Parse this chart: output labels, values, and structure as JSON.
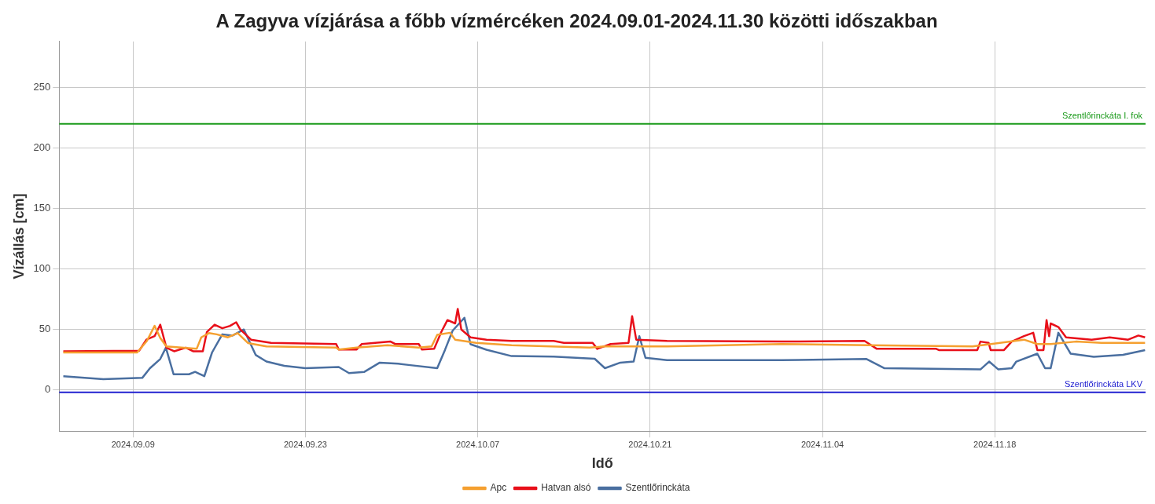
{
  "chart_data": {
    "type": "line",
    "title": "A Zagyva vízjárása a főbb vízmércéken 2024.09.01-2024.11.30 közötti időszakban",
    "xlabel": "Idő",
    "ylabel": "Vízállás [cm]",
    "xlim": [
      "2024-09-03",
      "2024-11-30T06:00"
    ],
    "xticks": [
      {
        "value": "2024-09-09",
        "label": "2024.09.09"
      },
      {
        "value": "2024-09-23",
        "label": "2024.09.23"
      },
      {
        "value": "2024-10-07",
        "label": "2024.10.07"
      },
      {
        "value": "2024-10-21",
        "label": "2024.10.21"
      },
      {
        "value": "2024-11-04",
        "label": "2024.11.04"
      },
      {
        "value": "2024-11-18",
        "label": "2024.11.18"
      }
    ],
    "ylim": [
      -34,
      288
    ],
    "yticks": [
      0,
      50,
      100,
      150,
      200,
      250
    ],
    "grid": true,
    "legend": "bottom",
    "marker": "none",
    "line_style": "solid",
    "series": [
      {
        "name": "Apc",
        "color": "#f5a030",
        "x": [
          "2024-09-03T08:00",
          "2024-09-09T08:00",
          "2024-09-10T03:00",
          "2024-09-10T18:00",
          "2024-09-11T05:00",
          "2024-09-11T17:00",
          "2024-09-14T04:00",
          "2024-09-14T13:00",
          "2024-09-15T04:00",
          "2024-09-15T19:00",
          "2024-09-16T17:00",
          "2024-09-17T12:00",
          "2024-09-18T08:00",
          "2024-09-19T20:00",
          "2024-09-25T12:00",
          "2024-09-25T17:00",
          "2024-09-27T04:00",
          "2024-09-29T16:00",
          "2024-10-02T05:00",
          "2024-10-03T06:00",
          "2024-10-03T17:00",
          "2024-10-04T18:00",
          "2024-10-05T04:00",
          "2024-10-06T21:00",
          "2024-10-09T18:00",
          "2024-10-16T02:00",
          "2024-10-17T08:00",
          "2024-10-22T09:00",
          "2024-10-31T16:00",
          "2024-11-07T18:00",
          "2024-11-16T05:00",
          "2024-11-20T09:00",
          "2024-11-21T11:00",
          "2024-11-22T13:00",
          "2024-11-24T14:00",
          "2024-11-26T16:00",
          "2024-11-30T05:00"
        ],
        "values": [
          31,
          31,
          40.6,
          53,
          43,
          36,
          34,
          43.5,
          47,
          46,
          43.5,
          47,
          38.8,
          36,
          35,
          33.5,
          35,
          37,
          35,
          36,
          45.6,
          47.3,
          41.6,
          39,
          37,
          35,
          36,
          36,
          38,
          37,
          36,
          41.6,
          38,
          38,
          40,
          39,
          39
        ]
      },
      {
        "name": "Hatvan alsó",
        "color": "#e8101a",
        "x": [
          "2024-09-03T08:00",
          "2024-09-09T12:00",
          "2024-09-10T02:00",
          "2024-09-10T18:00",
          "2024-09-11T05:00",
          "2024-09-11T17:00",
          "2024-09-12T08:00",
          "2024-09-13T07:00",
          "2024-09-13T21:00",
          "2024-09-14T16:00",
          "2024-09-15T00:00",
          "2024-09-15T15:00",
          "2024-09-16T06:00",
          "2024-09-16T21:00",
          "2024-09-17T09:00",
          "2024-09-17T17:00",
          "2024-09-18T14:00",
          "2024-09-20T05:00",
          "2024-09-25T12:00",
          "2024-09-25T17:00",
          "2024-09-27T04:00",
          "2024-09-27T14:00",
          "2024-09-29T22:00",
          "2024-09-30T07:00",
          "2024-10-02T05:00",
          "2024-10-02T11:00",
          "2024-10-03T11:00",
          "2024-10-04T01:00",
          "2024-10-04T13:00",
          "2024-10-05T04:00",
          "2024-10-05T09:00",
          "2024-10-05T16:00",
          "2024-10-06T10:00",
          "2024-10-07T17:00",
          "2024-10-09T18:00",
          "2024-10-13T04:00",
          "2024-10-14T00:00",
          "2024-10-16T08:00",
          "2024-10-16T17:00",
          "2024-10-17T19:00",
          "2024-10-19T06:00",
          "2024-10-19T13:00",
          "2024-10-19T21:00",
          "2024-10-22T09:00",
          "2024-10-31T16:00",
          "2024-11-07T10:00",
          "2024-11-08T10:00",
          "2024-11-13T06:00",
          "2024-11-13T11:00",
          "2024-11-16T14:00",
          "2024-11-16T20:00",
          "2024-11-17T12:00",
          "2024-11-17T16:00",
          "2024-11-18T18:00",
          "2024-11-19T09:00",
          "2024-11-20T09:00",
          "2024-11-21T03:00",
          "2024-11-21T11:00",
          "2024-11-21T23:00",
          "2024-11-22T05:00",
          "2024-11-22T10:00",
          "2024-11-22T13:00",
          "2024-11-23T04:00",
          "2024-11-23T19:00",
          "2024-11-25T21:00",
          "2024-11-27T08:00",
          "2024-11-28T20:00",
          "2024-11-29T16:00",
          "2024-11-30T05:00"
        ],
        "values": [
          32,
          32.5,
          41.6,
          44.5,
          54,
          35,
          32,
          35,
          32,
          32,
          48,
          54,
          51,
          53,
          56,
          50,
          41.6,
          39,
          38,
          33.5,
          33.5,
          38,
          40,
          38,
          38,
          33.5,
          34,
          48,
          57.8,
          55,
          67,
          50,
          43.5,
          41.6,
          40.6,
          40.6,
          39,
          39,
          34,
          38,
          39,
          61,
          41.6,
          40.6,
          40,
          40.6,
          34,
          34,
          33,
          33,
          40,
          39,
          33,
          33,
          40,
          44.5,
          47.3,
          33,
          33,
          57.8,
          44.5,
          55,
          52,
          43.5,
          41.6,
          43.5,
          41.6,
          45,
          43.5
        ]
      },
      {
        "name": "Szentlőrinckáta",
        "color": "#4a6fa0",
        "x": [
          "2024-09-03T08:00",
          "2024-09-06T14:00",
          "2024-09-09T18:00",
          "2024-09-10T09:00",
          "2024-09-11T05:00",
          "2024-09-11T16:00",
          "2024-09-12T07:00",
          "2024-09-13T13:00",
          "2024-09-14T01:00",
          "2024-09-14T19:00",
          "2024-09-15T10:00",
          "2024-09-16T06:00",
          "2024-09-17T02:00",
          "2024-09-18T00:00",
          "2024-09-18T23:00",
          "2024-09-19T20:00",
          "2024-09-21T07:00",
          "2024-09-23T00:00",
          "2024-09-25T17:00",
          "2024-09-26T13:00",
          "2024-09-27T19:00",
          "2024-09-29T01:00",
          "2024-09-30T13:00",
          "2024-10-01T09:00",
          "2024-10-03T17:00",
          "2024-10-04T08:00",
          "2024-10-04T23:00",
          "2024-10-05T22:00",
          "2024-10-06T10:00",
          "2024-10-07T17:00",
          "2024-10-09T18:00",
          "2024-10-13T04:00",
          "2024-10-16T12:00",
          "2024-10-17T08:00",
          "2024-10-18T14:00",
          "2024-10-19T16:00",
          "2024-10-20T03:00",
          "2024-10-20T15:00",
          "2024-10-22T09:00",
          "2024-10-31T16:00",
          "2024-11-07T14:00",
          "2024-11-09T01:00",
          "2024-11-16T20:00",
          "2024-11-17T13:00",
          "2024-11-18T07:00",
          "2024-11-19T09:00",
          "2024-11-19T18:00",
          "2024-11-21T11:00",
          "2024-11-22T02:00",
          "2024-11-22T13:00",
          "2024-11-23T04:00",
          "2024-11-24T04:00",
          "2024-11-26T01:00",
          "2024-11-28T10:00",
          "2024-11-30T05:00"
        ],
        "values": [
          11.4,
          9,
          10,
          18,
          25.6,
          35,
          13,
          13,
          15,
          11.4,
          31,
          46,
          45,
          50,
          29,
          23.5,
          20,
          18,
          19,
          14,
          15,
          22.6,
          21.7,
          20.7,
          18,
          33,
          49,
          59.7,
          37.8,
          33.3,
          28,
          27.6,
          25.8,
          18,
          22.6,
          23.5,
          44.5,
          26.6,
          24.7,
          24.7,
          25.6,
          18,
          17,
          23.5,
          17,
          18,
          23.5,
          30,
          18,
          18,
          47.3,
          30,
          27.4,
          29,
          33
        ]
      }
    ],
    "ref_lines": [
      {
        "axis": "y",
        "value": 220,
        "label": "Szentlőrinckáta I. fok",
        "color": "#1a9a1a"
      },
      {
        "axis": "y",
        "value": -2,
        "label": "Szentlőrinckáta LKV",
        "color": "#2020d0"
      }
    ]
  }
}
